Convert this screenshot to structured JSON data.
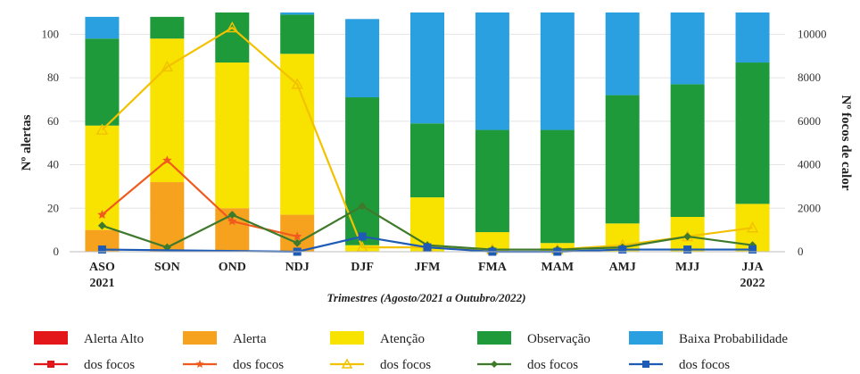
{
  "chart_data": {
    "type": "bar",
    "xlabel": "Trimestres (Agosto/2021 a Outubro/2022)",
    "ylabel": "Nº alertas",
    "y2label": "Nº focos de calor",
    "ylim": [
      0,
      110
    ],
    "y2lim": [
      0,
      11000
    ],
    "yticks": [
      0,
      20,
      40,
      60,
      80,
      100
    ],
    "y2ticks": [
      0,
      2000,
      4000,
      6000,
      8000,
      10000
    ],
    "categories": [
      {
        "line1": "ASO",
        "line2": "2021"
      },
      {
        "line1": "SON",
        "line2": ""
      },
      {
        "line1": "OND",
        "line2": ""
      },
      {
        "line1": "NDJ",
        "line2": ""
      },
      {
        "line1": "DJF",
        "line2": ""
      },
      {
        "line1": "JFM",
        "line2": ""
      },
      {
        "line1": "FMA",
        "line2": ""
      },
      {
        "line1": "MAM",
        "line2": ""
      },
      {
        "line1": "AMJ",
        "line2": ""
      },
      {
        "line1": "MJJ",
        "line2": ""
      },
      {
        "line1": "JJA",
        "line2": "2022"
      }
    ],
    "bar_series": [
      {
        "name": "Alerta Alto",
        "color": "#e3161a",
        "values": [
          0,
          0,
          0,
          0,
          0,
          0,
          0,
          0,
          0,
          0,
          0
        ]
      },
      {
        "name": "Alerta",
        "color": "#f6a21e",
        "values": [
          10,
          32,
          20,
          17,
          0,
          0,
          0,
          0,
          0,
          0,
          0
        ]
      },
      {
        "name": "Atenção",
        "color": "#f7e200",
        "values": [
          48,
          66,
          67,
          74,
          3,
          25,
          9,
          4,
          13,
          16,
          22
        ]
      },
      {
        "name": "Observação",
        "color": "#1e9a3a",
        "values": [
          40,
          10,
          23,
          18,
          68,
          34,
          47,
          52,
          59,
          61,
          65
        ]
      },
      {
        "name": "Baixa Probabilidade",
        "color": "#2aa0e0",
        "values": [
          10,
          0,
          0,
          1,
          36,
          51,
          54,
          54,
          38,
          33,
          23
        ]
      }
    ],
    "line_series": [
      {
        "name": "dos focos",
        "color": "#e3161a",
        "marker": "square",
        "values": [
          null,
          null,
          null,
          null,
          null,
          null,
          null,
          null,
          null,
          null,
          null
        ]
      },
      {
        "name": "dos focos",
        "color": "#f05a1e",
        "marker": "star",
        "values": [
          1700,
          4200,
          1400,
          700,
          null,
          null,
          null,
          null,
          null,
          null,
          null
        ]
      },
      {
        "name": "dos focos",
        "color": "#f2c200",
        "marker": "triangle",
        "values": [
          5600,
          8500,
          10300,
          7700,
          200,
          200,
          100,
          100,
          300,
          700,
          1100
        ]
      },
      {
        "name": "dos focos",
        "color": "#3f7a2c",
        "marker": "diamond",
        "values": [
          1200,
          200,
          1700,
          400,
          2100,
          300,
          100,
          100,
          200,
          700,
          300
        ]
      },
      {
        "name": "dos focos",
        "color": "#1e5bb5",
        "marker": "square",
        "values": [
          100,
          null,
          null,
          0,
          700,
          200,
          0,
          0,
          100,
          100,
          100
        ]
      }
    ]
  }
}
